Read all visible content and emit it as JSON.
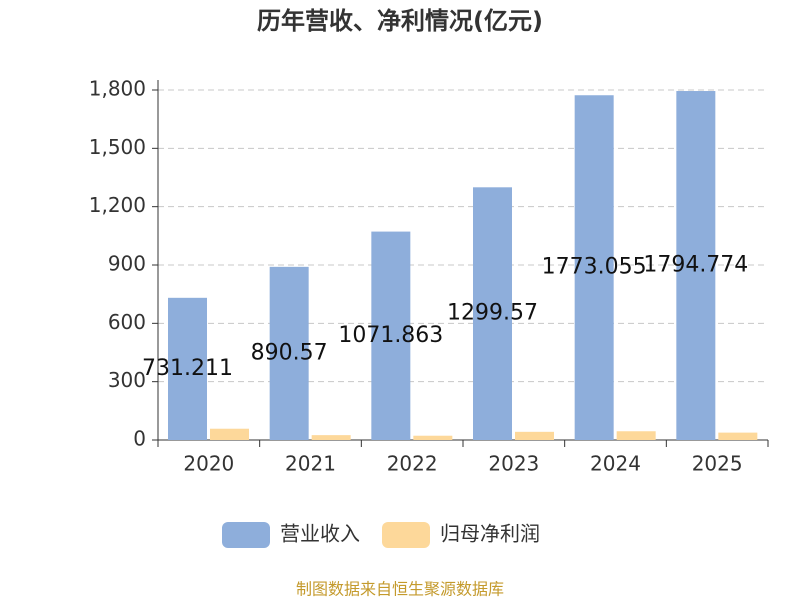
{
  "chart_data": {
    "type": "bar",
    "title": "历年营收、净利情况(亿元)",
    "categories": [
      "2020",
      "2021",
      "2022",
      "2023",
      "2024",
      "2025"
    ],
    "series": [
      {
        "name": "营业收入",
        "color": "#8eaedb",
        "values": [
          731.211,
          890.57,
          1071.863,
          1299.57,
          1773.055,
          1794.774
        ]
      },
      {
        "name": "归母净利润",
        "color": "#fdd89a",
        "values": [
          58,
          25,
          22,
          42,
          45,
          38
        ]
      }
    ],
    "ylim": [
      0,
      1800
    ],
    "yticks": [
      0,
      300,
      600,
      900,
      {
        "value": 1200,
        "label": "1,200"
      },
      {
        "value": 1500,
        "label": "1,500"
      },
      {
        "value": 1800,
        "label": "1,800"
      }
    ],
    "grid": true,
    "legend": "bottom",
    "source": "制图数据来自恒生聚源数据库"
  }
}
